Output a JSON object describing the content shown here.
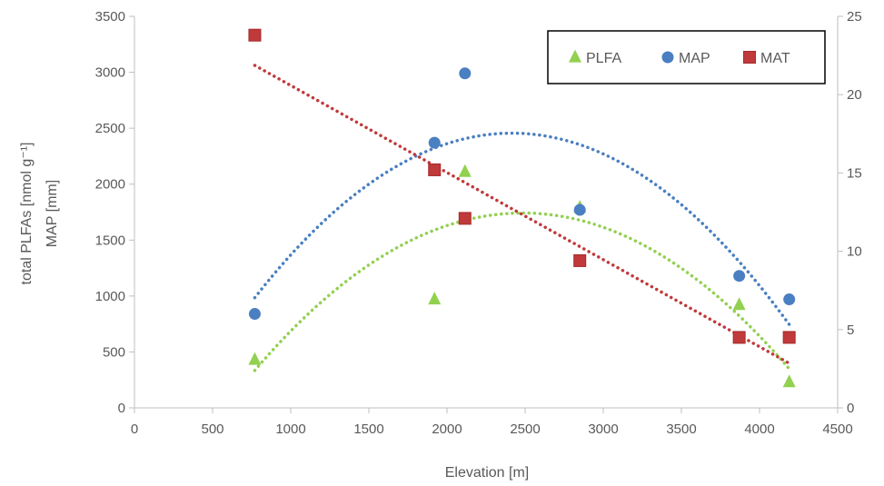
{
  "chart_data": {
    "type": "scatter",
    "xlabel": "Elevation [m]",
    "ylabel_lines": [
      "total PLFAs [nmol g⁻¹]",
      "MAP [mm]"
    ],
    "y2label": "",
    "xlim": [
      0,
      4500
    ],
    "ylim": [
      0,
      3500
    ],
    "y2lim": [
      0,
      25
    ],
    "xticks": [
      0,
      500,
      1000,
      1500,
      2000,
      2500,
      3000,
      3500,
      4000,
      4500
    ],
    "yticks": [
      0,
      500,
      1000,
      1500,
      2000,
      2500,
      3000,
      3500
    ],
    "y2ticks": [
      0,
      5,
      10,
      15,
      20,
      25
    ],
    "grid": false,
    "legend_position": "top-right",
    "series": [
      {
        "name": "PLFA",
        "axis": "left",
        "marker": "triangle",
        "color": "#92d050",
        "x": [
          770,
          1920,
          2115,
          2850,
          3870,
          4190
        ],
        "y": [
          430,
          970,
          2110,
          1790,
          920,
          230
        ],
        "trendline": "poly2"
      },
      {
        "name": "MAP",
        "axis": "left",
        "marker": "circle",
        "color": "#4a7fc1",
        "x": [
          770,
          1920,
          2115,
          2850,
          3870,
          4190
        ],
        "y": [
          840,
          2370,
          2990,
          1770,
          1180,
          970
        ],
        "trendline": "poly2"
      },
      {
        "name": "MAT",
        "axis": "right",
        "marker": "square",
        "color": "#c0393b",
        "x": [
          770,
          1920,
          2115,
          2850,
          3870,
          4190
        ],
        "y": [
          23.8,
          15.2,
          12.1,
          9.4,
          4.5,
          4.5
        ],
        "trendline": "linear"
      }
    ]
  }
}
